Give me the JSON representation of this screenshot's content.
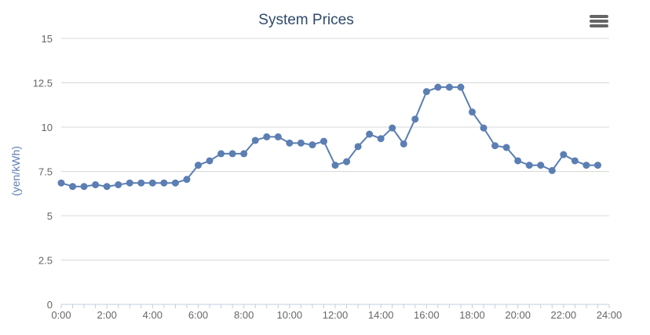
{
  "chart_data": {
    "type": "line",
    "title": "System Prices",
    "xlabel": "",
    "ylabel": "(yen/kWh)",
    "xlim": [
      0,
      24
    ],
    "ylim": [
      0,
      15
    ],
    "grid": true,
    "legend": "none",
    "x_tick_labels": [
      "0:00",
      "2:00",
      "4:00",
      "6:00",
      "8:00",
      "10:00",
      "12:00",
      "14:00",
      "16:00",
      "18:00",
      "20:00",
      "22:00",
      "24:00"
    ],
    "y_tick_labels": [
      "0",
      "2.5",
      "5",
      "7.5",
      "10",
      "12.5",
      "15"
    ],
    "series": [
      {
        "color": "#5b7eb3",
        "x": [
          0,
          0.5,
          1,
          1.5,
          2,
          2.5,
          3,
          3.5,
          4,
          4.5,
          5,
          5.5,
          6,
          6.5,
          7,
          7.5,
          8,
          8.5,
          9,
          9.5,
          10,
          10.5,
          11,
          11.5,
          12,
          12.5,
          13,
          13.5,
          14,
          14.5,
          15,
          15.5,
          16,
          16.5,
          17,
          17.5,
          18,
          18.5,
          19,
          19.5,
          20,
          20.5,
          21,
          21.5,
          22,
          22.5,
          23,
          23.5
        ],
        "values": [
          6.85,
          6.65,
          6.65,
          6.75,
          6.65,
          6.75,
          6.85,
          6.85,
          6.85,
          6.85,
          6.85,
          7.05,
          7.85,
          8.1,
          8.5,
          8.5,
          8.5,
          9.25,
          9.45,
          9.45,
          9.1,
          9.1,
          9.0,
          9.2,
          7.85,
          8.05,
          8.9,
          9.6,
          9.35,
          9.95,
          9.05,
          10.45,
          12.0,
          12.25,
          12.25,
          12.25,
          10.85,
          9.95,
          8.95,
          8.85,
          8.1,
          7.85,
          7.85,
          7.55,
          8.45,
          8.1,
          7.85,
          7.85
        ]
      }
    ]
  },
  "menu": {
    "icon": "hamburger-menu-icon",
    "color": "#666666"
  },
  "colors": {
    "title": "#2f4a6b",
    "axis_title": "#5b7eb3",
    "tick_label": "#666666",
    "grid": "#d8d8d8",
    "axis_line": "#c0d0e0"
  }
}
